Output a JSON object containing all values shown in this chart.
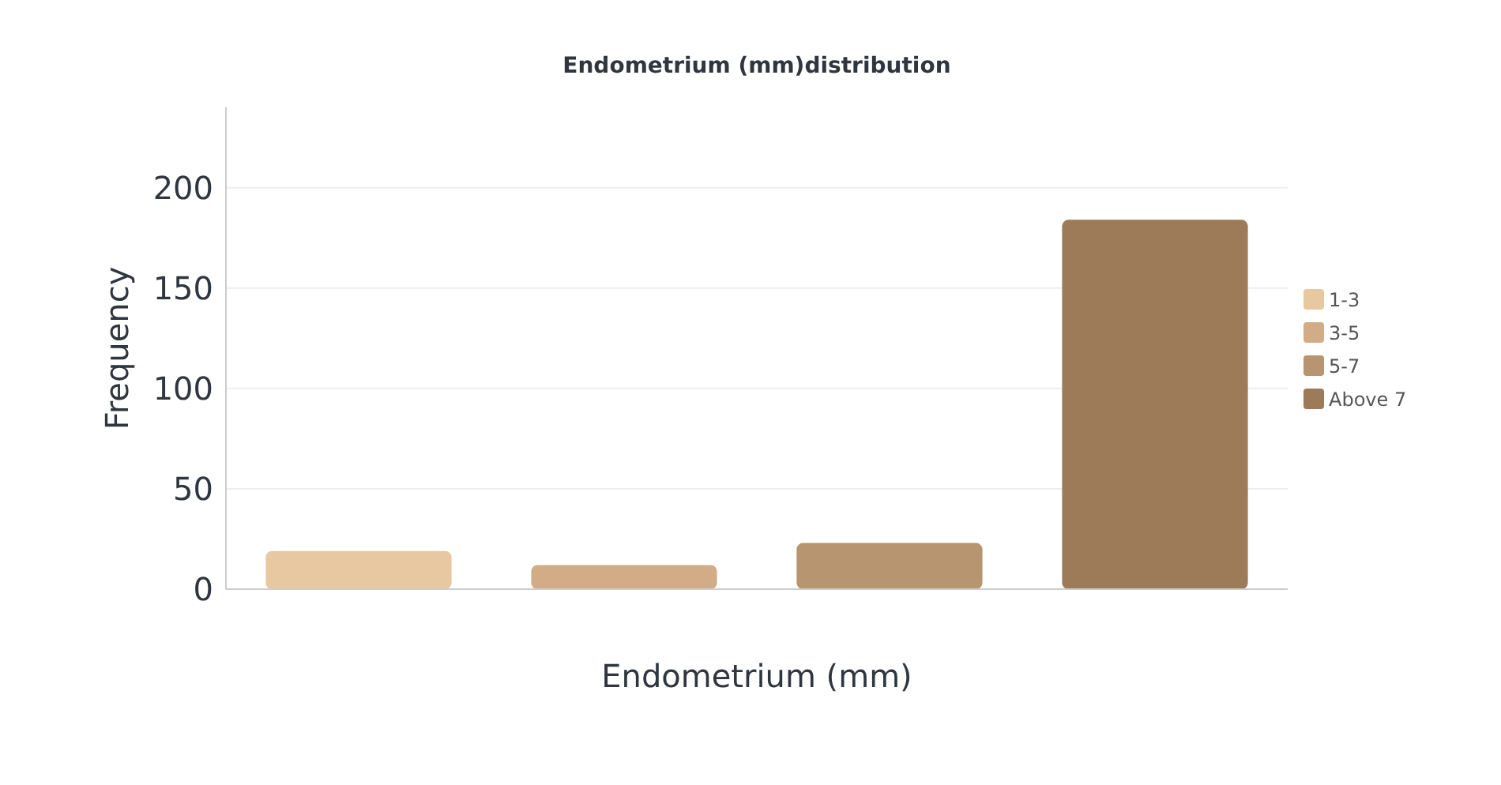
{
  "chart_data": {
    "type": "bar",
    "title": "Endometrium (mm)distribution",
    "xlabel": "Endometrium (mm)",
    "ylabel": "Frequency",
    "categories": [
      null,
      null,
      null,
      null
    ],
    "series": [
      {
        "name": "1-3",
        "color": "#e8c8a0",
        "values": [
          19,
          null,
          null,
          null
        ]
      },
      {
        "name": "3-5",
        "color": "#d2ac86",
        "values": [
          null,
          12,
          null,
          null
        ]
      },
      {
        "name": "5-7",
        "color": "#b79571",
        "values": [
          null,
          null,
          23,
          null
        ]
      },
      {
        "name": "Above 7",
        "color": "#9d7b58",
        "values": [
          null,
          null,
          null,
          184
        ]
      }
    ],
    "ylim": [
      0,
      240
    ],
    "yticks": [
      0,
      50,
      100,
      150,
      200
    ],
    "grid": "y",
    "legend": "right"
  }
}
